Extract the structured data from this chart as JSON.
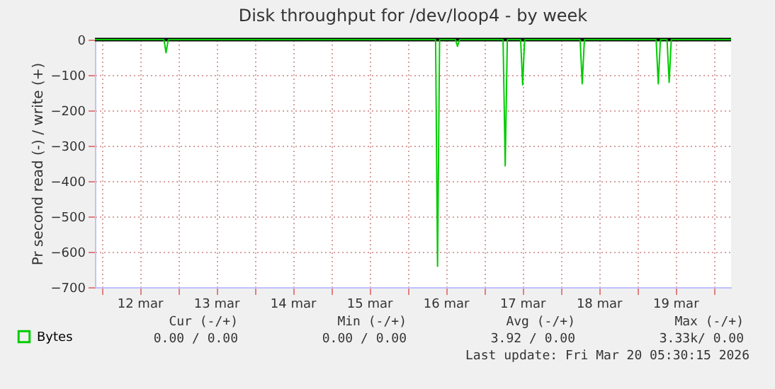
{
  "chart_data": {
    "type": "line",
    "title": "Disk throughput for /dev/loop4 - by week",
    "ylabel": "Pr second read (-) / write (+)",
    "x": [
      "2026-03-11T22:00",
      "2026-03-12T19:40",
      "2026-03-12T20:18",
      "2026-03-12T21:00",
      "2026-03-16T08:50",
      "2026-03-16T09:27",
      "2026-03-16T10:05",
      "2026-03-16T15:05",
      "2026-03-16T15:42",
      "2026-03-16T16:20",
      "2026-03-17T06:00",
      "2026-03-17T06:40",
      "2026-03-17T07:20",
      "2026-03-17T11:30",
      "2026-03-17T12:08",
      "2026-03-17T12:45",
      "2026-03-18T06:10",
      "2026-03-18T06:49",
      "2026-03-18T07:30",
      "2026-03-19T06:00",
      "2026-03-19T06:40",
      "2026-03-19T07:20",
      "2026-03-19T09:25",
      "2026-03-19T10:05",
      "2026-03-19T10:45",
      "2026-03-20T05:30"
    ],
    "series": [
      {
        "name": "Bytes",
        "color": "#00cc00",
        "values": [
          0,
          0,
          -37,
          0,
          0,
          -641,
          0,
          0,
          -19,
          0,
          0,
          -357,
          0,
          0,
          -128,
          0,
          0,
          -125,
          0,
          0,
          -125,
          0,
          0,
          -121,
          0,
          0
        ]
      }
    ],
    "xlim": [
      "2026-03-11T22:00",
      "2026-03-20T05:30"
    ],
    "xticks": [
      {
        "value": "2026-03-12T00:00",
        "label": null
      },
      {
        "value": "2026-03-12T12:00",
        "label": "12 mar"
      },
      {
        "value": "2026-03-13T00:00",
        "label": null
      },
      {
        "value": "2026-03-13T12:00",
        "label": "13 mar"
      },
      {
        "value": "2026-03-14T00:00",
        "label": null
      },
      {
        "value": "2026-03-14T12:00",
        "label": "14 mar"
      },
      {
        "value": "2026-03-15T00:00",
        "label": null
      },
      {
        "value": "2026-03-15T12:00",
        "label": "15 mar"
      },
      {
        "value": "2026-03-16T00:00",
        "label": null
      },
      {
        "value": "2026-03-16T12:00",
        "label": "16 mar"
      },
      {
        "value": "2026-03-17T00:00",
        "label": null
      },
      {
        "value": "2026-03-17T12:00",
        "label": "17 mar"
      },
      {
        "value": "2026-03-18T00:00",
        "label": null
      },
      {
        "value": "2026-03-18T12:00",
        "label": "18 mar"
      },
      {
        "value": "2026-03-19T00:00",
        "label": null
      },
      {
        "value": "2026-03-19T12:00",
        "label": "19 mar"
      },
      {
        "value": "2026-03-20T00:00",
        "label": null
      }
    ],
    "ylim": [
      -700,
      0
    ],
    "yticks": [
      -700,
      -600,
      -500,
      -400,
      -300,
      -200,
      -100,
      0
    ],
    "ref_lines": [
      {
        "axis": "y",
        "value": 0,
        "color": "#000000"
      }
    ],
    "grid": true,
    "legend": "bottom",
    "marker": "none",
    "line_style": "solid",
    "annotations": [
      "Cur (-/+)",
      "Min (-/+)",
      "Avg (-/+)",
      "Max (-/+)",
      "0.00 /    0.00",
      "0.00 /    0.00",
      "3.92 /    0.00",
      "3.33k/    0.00",
      "Last update: Fri Mar 20 05:30:15 2026"
    ]
  }
}
